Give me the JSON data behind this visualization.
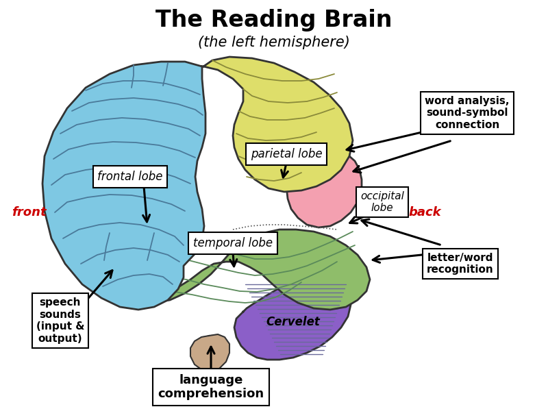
{
  "title": "The Reading Brain",
  "subtitle": "(the left hemisphere)",
  "bg_color": "#ffffff",
  "title_fontsize": 24,
  "subtitle_fontsize": 15,
  "labels": {
    "frontal_lobe": "frontal lobe",
    "parietal_lobe": "parietal lobe",
    "temporal_lobe": "temporal lobe",
    "occipital_lobe": "occipital\nlobe",
    "cerebelet": "Cervelet",
    "front": "front",
    "back": "back",
    "speech_sounds": "speech\nsounds\n(input &\noutput)",
    "language_comprehension": "language\ncomprehension",
    "word_analysis": "word analysis,\nsound-symbol\nconnection",
    "letter_word": "letter/word\nrecognition"
  },
  "colors": {
    "frontal_lobe": "#7EC8E3",
    "parietal_lobe": "#DEDE6A",
    "temporal_lobe": "#8FBD6A",
    "occipital_lobe": "#F4A0B0",
    "cerebelet": "#8B5FC8",
    "brainstem": "#C8A888",
    "outline": "#333333",
    "front_back": "#cc0000",
    "label_box": "#ffffff",
    "label_border": "#000000",
    "gyri": "#4a7a9a"
  }
}
